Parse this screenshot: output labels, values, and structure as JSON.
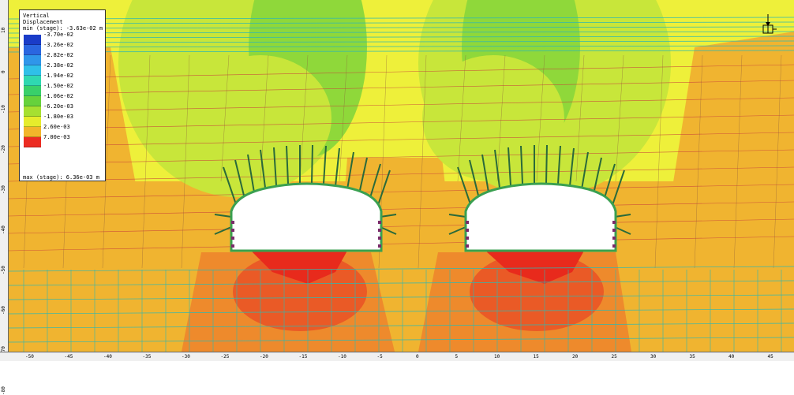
{
  "legend": {
    "title_line1": "Vertical",
    "title_line2": "Displacement",
    "min_text": "min (stage): -3.63e-02 m",
    "max_text": "max (stage): 6.36e-03 m",
    "levels": [
      {
        "label": "-3.70e-02",
        "color": "#1a3cc8"
      },
      {
        "label": "-3.26e-02",
        "color": "#2a66e0"
      },
      {
        "label": "-2.82e-02",
        "color": "#2f96ea"
      },
      {
        "label": "-2.38e-02",
        "color": "#2fc0e8"
      },
      {
        "label": "-1.94e-02",
        "color": "#2fd8b0"
      },
      {
        "label": "-1.50e-02",
        "color": "#39d06a"
      },
      {
        "label": "-1.06e-02",
        "color": "#66d23c"
      },
      {
        "label": "-6.20e-03",
        "color": "#a6e031"
      },
      {
        "label": "-1.80e-03",
        "color": "#e6ec2c"
      },
      {
        "label": "2.60e-03",
        "color": "#f2b52a"
      },
      {
        "label": "7.00e-03",
        "color": "#ec2c22"
      }
    ]
  },
  "field_colors": {
    "yellow": "#eef03a",
    "lime": "#c8e63a",
    "green": "#8fd83a",
    "orange": "#f0b430",
    "deep_orange": "#ee8a2c",
    "red_orange": "#ea5a26",
    "red": "#e82a1c",
    "joint_teal": "#30b8b0",
    "joint_red": "#c8403a"
  },
  "y_ticks": [
    "10",
    "0",
    "-10",
    "-20",
    "-30",
    "-40",
    "-50",
    "-60",
    "-70",
    "-80"
  ],
  "x_ticks": [
    "-50",
    "-45",
    "-40",
    "-35",
    "-30",
    "-25",
    "-20",
    "-15",
    "-10",
    "-5",
    "0",
    "5",
    "10",
    "15",
    "20",
    "25",
    "30",
    "35",
    "40",
    "45"
  ]
}
